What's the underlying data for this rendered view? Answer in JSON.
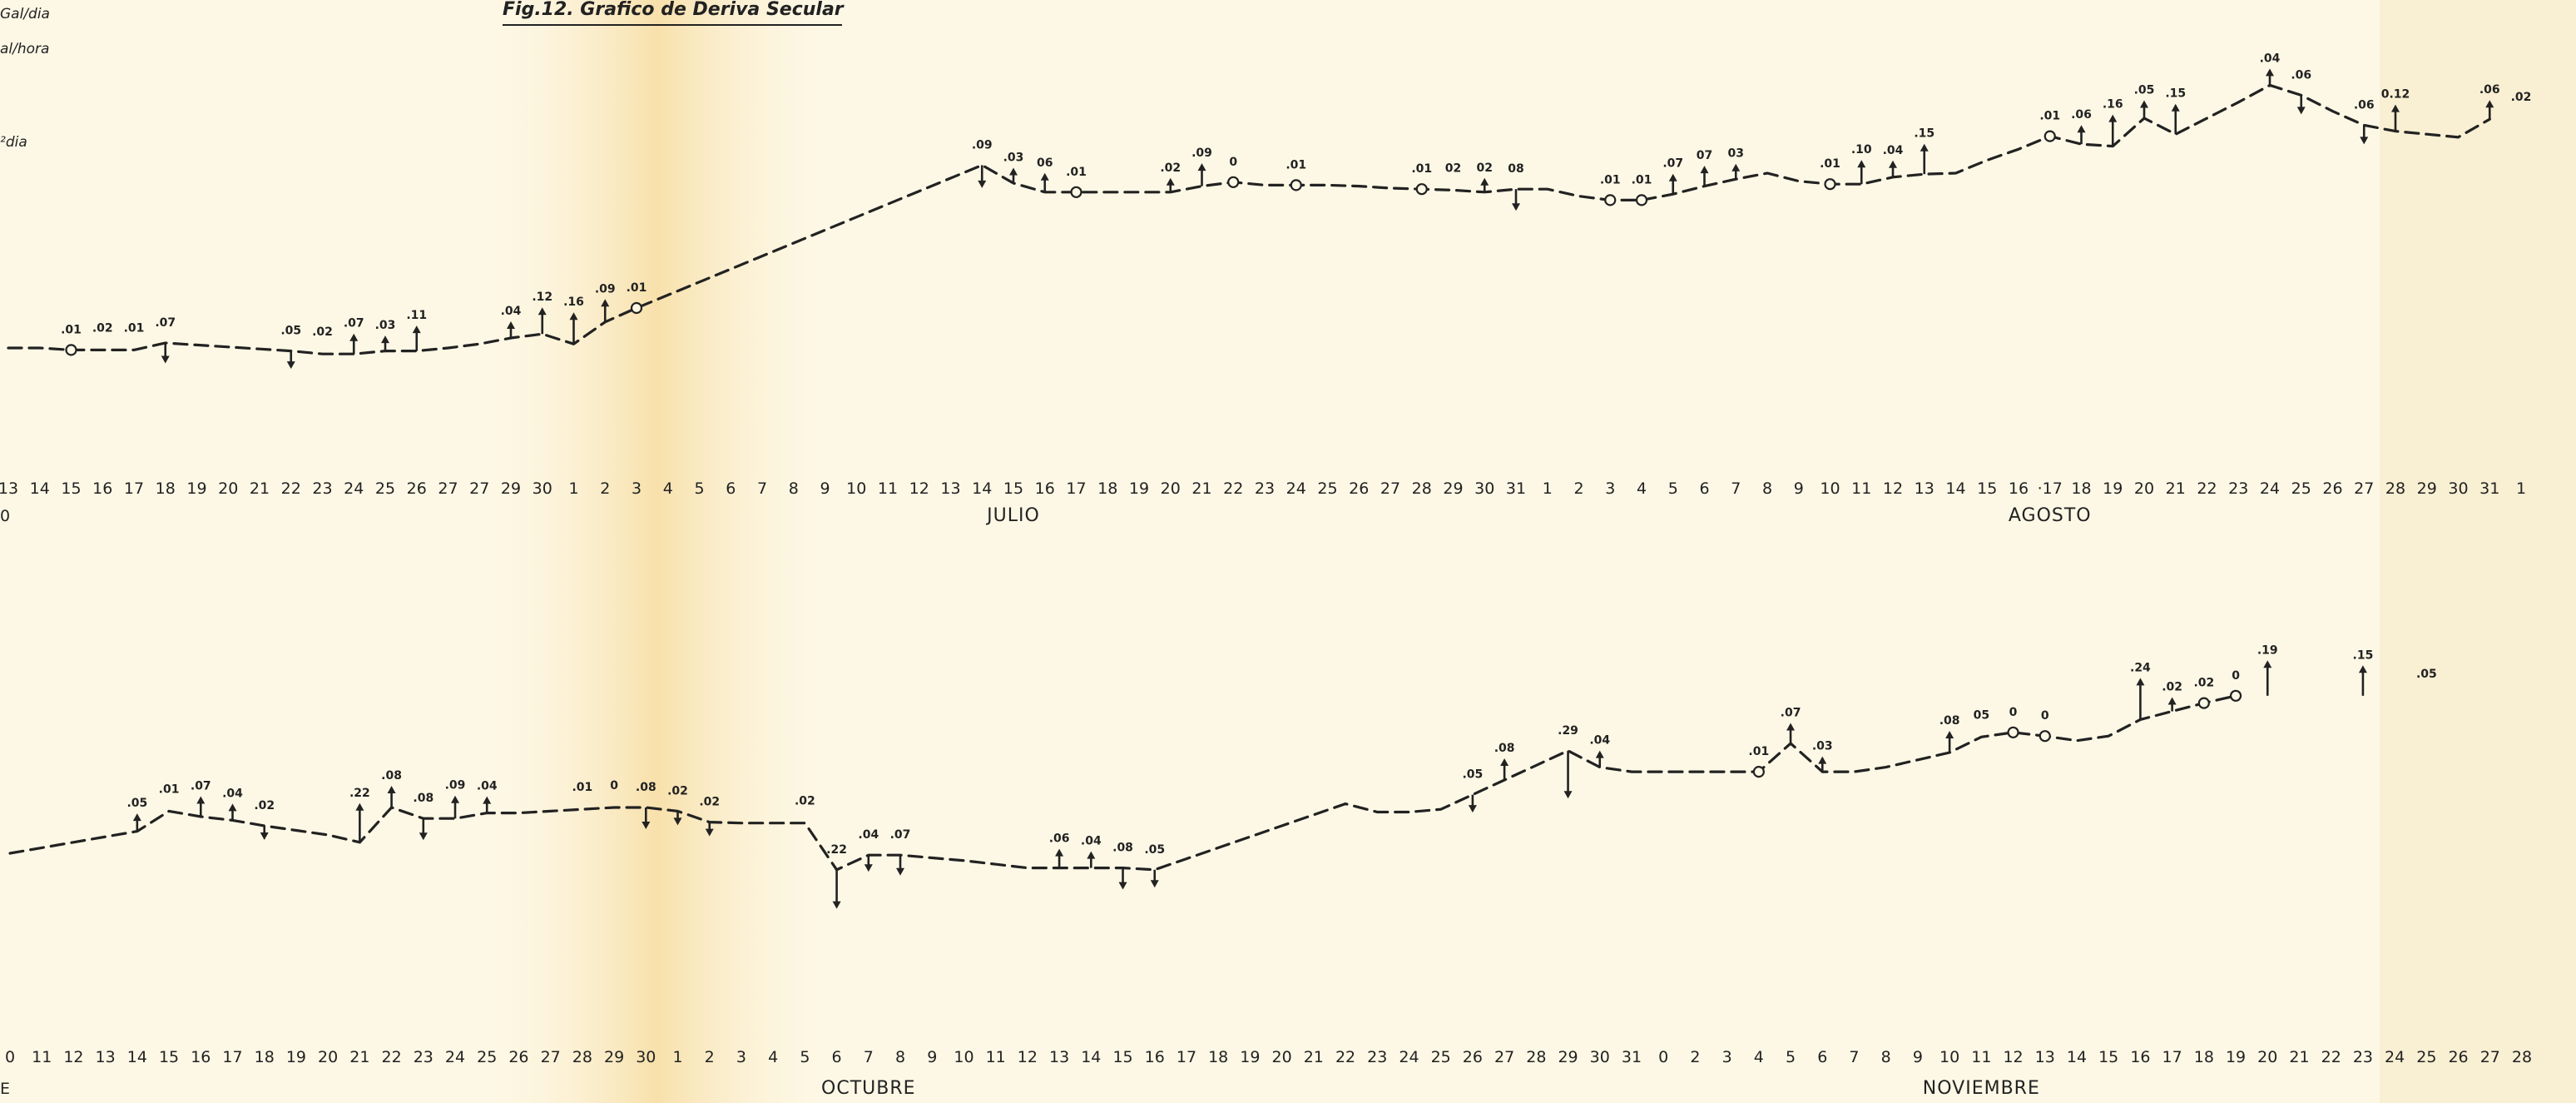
{
  "figure": {
    "title": "Fig.12. Grafico de Deriva Secular",
    "notes": [
      "Gal/dia",
      "al/hora",
      "²dia"
    ]
  },
  "chart_data": [
    {
      "type": "line",
      "panel": "top",
      "x_ticks": [
        "13",
        "14",
        "15",
        "16",
        "17",
        "18",
        "19",
        "20",
        "21",
        "22",
        "23",
        "24",
        "25",
        "26",
        "27",
        "27",
        "29",
        "30",
        "1",
        "2",
        "3",
        "4",
        "5",
        "6",
        "7",
        "8",
        "9",
        "10",
        "11",
        "12",
        "13",
        "14",
        "15",
        "16",
        "17",
        "18",
        "19",
        "20",
        "21",
        "22",
        "23",
        "24",
        "25",
        "26",
        "27",
        "28",
        "29",
        "30",
        "31",
        "1",
        "2",
        "3",
        "4",
        "5",
        "6",
        "7",
        "8",
        "9",
        "10",
        "11",
        "12",
        "13",
        "14",
        "15",
        "16",
        "·17",
        "18",
        "19",
        "20",
        "21",
        "22",
        "23",
        "24",
        "25",
        "26",
        "27",
        "28",
        "29",
        "30",
        "31",
        "1"
      ],
      "month_labels": [
        {
          "text": "JULIO",
          "tick_index": 32
        },
        {
          "text": "AGOSTO",
          "tick_index": 65
        }
      ],
      "edge_label": "0",
      "trace_y": [
        0.0,
        0.0,
        -0.2,
        -0.2,
        -0.2,
        0.5,
        0.3,
        0.1,
        -0.1,
        -0.3,
        -0.6,
        -0.6,
        -0.3,
        -0.3,
        0.0,
        0.4,
        1.0,
        1.4,
        0.4,
        2.6,
        4.0,
        5.3,
        6.6,
        7.9,
        9.2,
        10.5,
        11.8,
        13.1,
        14.4,
        15.7,
        17.0,
        18.3,
        16.5,
        15.6,
        15.6,
        15.6,
        15.6,
        15.6,
        16.2,
        16.6,
        16.3,
        16.3,
        16.3,
        16.2,
        16.0,
        15.9,
        15.8,
        15.6,
        15.9,
        15.9,
        15.2,
        14.8,
        14.8,
        15.4,
        16.2,
        16.9,
        17.5,
        16.7,
        16.4,
        16.4,
        17.1,
        17.4,
        17.5,
        18.8,
        19.9,
        21.2,
        20.4,
        20.2,
        23.0,
        21.4,
        23.0,
        24.6,
        26.3,
        25.3,
        23.7,
        22.3,
        21.7,
        21.4,
        21.1,
        22.9
      ],
      "observations": [
        {
          "tick_index": 2,
          "label": ".01",
          "marker": "circle"
        },
        {
          "tick_index": 3,
          "label": ".02",
          "marker": "none"
        },
        {
          "tick_index": 4,
          "label": ".01",
          "marker": "none"
        },
        {
          "tick_index": 5,
          "label": ".07",
          "marker": "arrow-down",
          "size": 0.07
        },
        {
          "tick_index": 9,
          "label": ".05",
          "marker": "arrow-down",
          "size": 0.05
        },
        {
          "tick_index": 10,
          "label": ".02",
          "marker": "none"
        },
        {
          "tick_index": 11,
          "label": ".07",
          "marker": "arrow-up",
          "size": 0.07
        },
        {
          "tick_index": 12,
          "label": ".03",
          "marker": "arrow-up",
          "size": 0.03
        },
        {
          "tick_index": 13,
          "label": ".11",
          "marker": "arrow-up",
          "size": 0.11
        },
        {
          "tick_index": 16,
          "label": ".04",
          "marker": "arrow-up",
          "size": 0.04
        },
        {
          "tick_index": 17,
          "label": ".12",
          "marker": "arrow-up",
          "size": 0.12
        },
        {
          "tick_index": 18,
          "label": ".16",
          "marker": "arrow-up",
          "size": 0.16
        },
        {
          "tick_index": 19,
          "label": ".09",
          "marker": "arrow-up",
          "size": 0.09
        },
        {
          "tick_index": 20,
          "label": ".01",
          "marker": "circle"
        },
        {
          "tick_index": 31,
          "label": ".09",
          "marker": "arrow-down",
          "size": 0.09
        },
        {
          "tick_index": 32,
          "label": ".03",
          "marker": "arrow-up",
          "size": 0.03
        },
        {
          "tick_index": 33,
          "label": "06",
          "marker": "arrow-up",
          "size": 0.06
        },
        {
          "tick_index": 34,
          "label": ".01",
          "marker": "circle"
        },
        {
          "tick_index": 37,
          "label": ".02",
          "marker": "arrow-up",
          "size": 0.02
        },
        {
          "tick_index": 38,
          "label": ".09",
          "marker": "arrow-up",
          "size": 0.09
        },
        {
          "tick_index": 39,
          "label": "0",
          "marker": "circle"
        },
        {
          "tick_index": 41,
          "label": ".01",
          "marker": "circle"
        },
        {
          "tick_index": 45,
          "label": ".01",
          "marker": "circle"
        },
        {
          "tick_index": 46,
          "label": "02",
          "marker": "none"
        },
        {
          "tick_index": 47,
          "label": "02",
          "marker": "arrow-up",
          "size": 0.02
        },
        {
          "tick_index": 48,
          "label": "08",
          "marker": "arrow-down",
          "size": 0.08
        },
        {
          "tick_index": 51,
          "label": ".01",
          "marker": "circle"
        },
        {
          "tick_index": 52,
          "label": ".01",
          "marker": "circle"
        },
        {
          "tick_index": 53,
          "label": ".07",
          "marker": "arrow-up",
          "size": 0.07
        },
        {
          "tick_index": 54,
          "label": "07",
          "marker": "arrow-up",
          "size": 0.07
        },
        {
          "tick_index": 55,
          "label": "03",
          "marker": "arrow-up",
          "size": 0.03
        },
        {
          "tick_index": 58,
          "label": ".01",
          "marker": "circle"
        },
        {
          "tick_index": 59,
          "label": ".10",
          "marker": "arrow-up",
          "size": 0.1
        },
        {
          "tick_index": 60,
          "label": ".04",
          "marker": "arrow-up",
          "size": 0.04
        },
        {
          "tick_index": 61,
          "label": ".15",
          "marker": "arrow-up",
          "size": 0.15
        },
        {
          "tick_index": 65,
          "label": ".01",
          "marker": "circle"
        },
        {
          "tick_index": 66,
          "label": ".06",
          "marker": "arrow-up",
          "size": 0.06
        },
        {
          "tick_index": 67,
          "label": ".16",
          "marker": "arrow-up",
          "size": 0.16
        },
        {
          "tick_index": 68,
          "label": ".05",
          "marker": "arrow-up",
          "size": 0.05
        },
        {
          "tick_index": 69,
          "label": ".15",
          "marker": "arrow-up",
          "size": 0.15
        },
        {
          "tick_index": 72,
          "label": ".04",
          "marker": "arrow-up",
          "size": 0.04
        },
        {
          "tick_index": 73,
          "label": ".06",
          "marker": "arrow-down",
          "size": 0.06
        },
        {
          "tick_index": 75,
          "label": ".06",
          "marker": "arrow-down",
          "size": 0.06
        },
        {
          "tick_index": 76,
          "label": "0.12",
          "marker": "arrow-up",
          "size": 0.12
        },
        {
          "tick_index": 79,
          "label": ".06",
          "marker": "arrow-up",
          "size": 0.06
        },
        {
          "tick_index": 80,
          "label": ".02",
          "marker": "none"
        }
      ]
    },
    {
      "type": "line",
      "panel": "bottom",
      "x_ticks": [
        "0",
        "11",
        "12",
        "13",
        "14",
        "15",
        "16",
        "17",
        "18",
        "19",
        "20",
        "21",
        "22",
        "23",
        "24",
        "25",
        "26",
        "27",
        "28",
        "29",
        "30",
        "1",
        "2",
        "3",
        "4",
        "5",
        "6",
        "7",
        "8",
        "9",
        "10",
        "11",
        "12",
        "13",
        "14",
        "15",
        "16",
        "17",
        "18",
        "19",
        "20",
        "21",
        "22",
        "23",
        "24",
        "25",
        "26",
        "27",
        "28",
        "29",
        "30",
        "31",
        "0",
        "2",
        "3",
        "4",
        "5",
        "6",
        "7",
        "8",
        "9",
        "10",
        "11",
        "12",
        "13",
        "14",
        "15",
        "16",
        "17",
        "18",
        "19",
        "20",
        "21",
        "22",
        "23",
        "24",
        "25",
        "26",
        "27",
        "28"
      ],
      "month_labels": [
        {
          "text": "OCTUBRE",
          "tick_index": 27
        },
        {
          "text": "NOVIEMBRE",
          "tick_index": 62
        }
      ],
      "edge_label": "E",
      "trace_y": [
        0.0,
        0.6,
        1.2,
        1.8,
        2.4,
        4.6,
        4.0,
        3.6,
        3.0,
        2.5,
        2.0,
        1.2,
        5.0,
        3.8,
        3.8,
        4.4,
        4.4,
        4.6,
        4.8,
        5.0,
        5.0,
        4.6,
        3.4,
        3.3,
        3.3,
        3.3,
        -1.8,
        -0.2,
        -0.2,
        -0.5,
        -0.8,
        -1.2,
        -1.6,
        -1.6,
        -1.6,
        -1.6,
        -1.8,
        -0.6,
        0.6,
        1.8,
        3.0,
        4.2,
        5.4,
        4.5,
        4.5,
        4.8,
        6.4,
        8.0,
        9.6,
        11.2,
        9.4,
        8.9,
        8.9,
        8.9,
        8.9,
        8.9,
        12.0,
        8.9,
        8.9,
        9.4,
        10.2,
        11.0,
        12.7,
        13.2,
        12.8,
        12.3,
        12.8,
        14.6,
        15.5,
        16.4,
        17.2
      ],
      "observations": [
        {
          "tick_index": 4,
          "label": ".05",
          "marker": "arrow-up",
          "size": 0.05
        },
        {
          "tick_index": 5,
          "label": ".01",
          "marker": "none"
        },
        {
          "tick_index": 6,
          "label": ".07",
          "marker": "arrow-up",
          "size": 0.07
        },
        {
          "tick_index": 7,
          "label": ".04",
          "marker": "arrow-up",
          "size": 0.04
        },
        {
          "tick_index": 8,
          "label": ".02",
          "marker": "arrow-down",
          "size": 0.02
        },
        {
          "tick_index": 11,
          "label": ".22",
          "marker": "arrow-up",
          "size": 0.22
        },
        {
          "tick_index": 12,
          "label": ".08",
          "marker": "arrow-up",
          "size": 0.08
        },
        {
          "tick_index": 13,
          "label": ".08",
          "marker": "arrow-down",
          "size": 0.08
        },
        {
          "tick_index": 14,
          "label": ".09",
          "marker": "arrow-up",
          "size": 0.09
        },
        {
          "tick_index": 15,
          "label": ".04",
          "marker": "arrow-up",
          "size": 0.04
        },
        {
          "tick_index": 18,
          "label": ".01",
          "marker": "none"
        },
        {
          "tick_index": 19,
          "label": "0",
          "marker": "none"
        },
        {
          "tick_index": 20,
          "label": ".08",
          "marker": "arrow-down",
          "size": 0.08
        },
        {
          "tick_index": 21,
          "label": ".02",
          "marker": "arrow-down",
          "size": 0.02
        },
        {
          "tick_index": 22,
          "label": ".02",
          "marker": "arrow-down",
          "size": 0.02
        },
        {
          "tick_index": 25,
          "label": ".02",
          "marker": "none"
        },
        {
          "tick_index": 26,
          "label": ".22",
          "marker": "arrow-down",
          "size": 0.22
        },
        {
          "tick_index": 27,
          "label": ".04",
          "marker": "arrow-down",
          "size": 0.04
        },
        {
          "tick_index": 28,
          "label": ".07",
          "marker": "arrow-down",
          "size": 0.07
        },
        {
          "tick_index": 33,
          "label": ".06",
          "marker": "arrow-up",
          "size": 0.06
        },
        {
          "tick_index": 34,
          "label": ".04",
          "marker": "arrow-up",
          "size": 0.04
        },
        {
          "tick_index": 35,
          "label": ".08",
          "marker": "arrow-down",
          "size": 0.08
        },
        {
          "tick_index": 36,
          "label": ".05",
          "marker": "arrow-down",
          "size": 0.05
        },
        {
          "tick_index": 46,
          "label": ".05",
          "marker": "arrow-down",
          "size": 0.05
        },
        {
          "tick_index": 47,
          "label": ".08",
          "marker": "arrow-up",
          "size": 0.08
        },
        {
          "tick_index": 49,
          "label": ".29",
          "marker": "arrow-down",
          "size": 0.29
        },
        {
          "tick_index": 50,
          "label": ".04",
          "marker": "arrow-up",
          "size": 0.04
        },
        {
          "tick_index": 55,
          "label": ".01",
          "marker": "circle"
        },
        {
          "tick_index": 56,
          "label": ".07",
          "marker": "arrow-up",
          "size": 0.07
        },
        {
          "tick_index": 57,
          "label": ".03",
          "marker": "arrow-up",
          "size": 0.03
        },
        {
          "tick_index": 61,
          "label": ".08",
          "marker": "arrow-up",
          "size": 0.08
        },
        {
          "tick_index": 62,
          "label": "05",
          "marker": "none"
        },
        {
          "tick_index": 63,
          "label": "0",
          "marker": "circle"
        },
        {
          "tick_index": 64,
          "label": "0",
          "marker": "circle"
        },
        {
          "tick_index": 67,
          "label": ".24",
          "marker": "arrow-up",
          "size": 0.24
        },
        {
          "tick_index": 68,
          "label": ".02",
          "marker": "arrow-up",
          "size": 0.02
        },
        {
          "tick_index": 69,
          "label": ".02",
          "marker": "circle"
        },
        {
          "tick_index": 70,
          "label": "0",
          "marker": "circle"
        },
        {
          "tick_index": 71,
          "label": ".19",
          "marker": "arrow-up",
          "size": 0.19
        },
        {
          "tick_index": 74,
          "label": ".15",
          "marker": "arrow-up",
          "size": 0.15
        },
        {
          "tick_index": 76,
          "label": ".05",
          "marker": "none"
        }
      ]
    }
  ]
}
